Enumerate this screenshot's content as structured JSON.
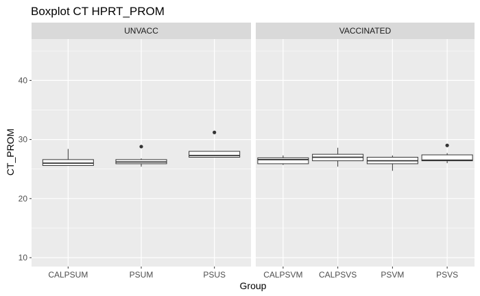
{
  "chart_data": {
    "type": "boxplot",
    "title": "Boxplot CT HPRT_PROM",
    "xlabel": "Group",
    "ylabel": "CT_PROM",
    "ylim": [
      8.5,
      47
    ],
    "yticks": [
      10,
      20,
      30,
      40
    ],
    "grid": true,
    "facets": [
      {
        "name": "UNVACC",
        "categories": [
          "CALPSUM",
          "PSUM",
          "PSUS"
        ],
        "boxes": [
          {
            "category": "CALPSUM",
            "whisker_low": 25.6,
            "q1": 25.6,
            "median": 26.0,
            "q3": 26.6,
            "whisker_high": 28.4,
            "outliers": []
          },
          {
            "category": "PSUM",
            "whisker_low": 25.4,
            "q1": 25.9,
            "median": 26.2,
            "q3": 26.6,
            "whisker_high": 26.8,
            "outliers": [
              28.8
            ]
          },
          {
            "category": "PSUS",
            "whisker_low": 27.0,
            "q1": 27.0,
            "median": 27.3,
            "q3": 28.0,
            "whisker_high": 28.0,
            "outliers": [
              31.2
            ]
          }
        ]
      },
      {
        "name": "VACCINATED",
        "categories": [
          "CALPSVM",
          "CALPSVS",
          "PSVM",
          "PSVS"
        ],
        "boxes": [
          {
            "category": "CALPSVM",
            "whisker_low": 25.7,
            "q1": 25.9,
            "median": 26.6,
            "q3": 26.9,
            "whisker_high": 27.3,
            "outliers": []
          },
          {
            "category": "CALPSVS",
            "whisker_low": 25.4,
            "q1": 26.4,
            "median": 27.0,
            "q3": 27.5,
            "whisker_high": 28.6,
            "outliers": []
          },
          {
            "category": "PSVM",
            "whisker_low": 24.7,
            "q1": 25.9,
            "median": 26.4,
            "q3": 27.0,
            "whisker_high": 27.3,
            "outliers": []
          },
          {
            "category": "PSVS",
            "whisker_low": 26.0,
            "q1": 26.4,
            "median": 26.5,
            "q3": 27.4,
            "whisker_high": 27.7,
            "outliers": [
              29.0
            ]
          }
        ]
      }
    ],
    "colors": {
      "panel_background": "#ebebeb",
      "strip_background": "#d9d9d9",
      "grid": "#ffffff",
      "box_fill": "#ffffff",
      "box_stroke": "#333333",
      "outlier": "#333333"
    }
  }
}
